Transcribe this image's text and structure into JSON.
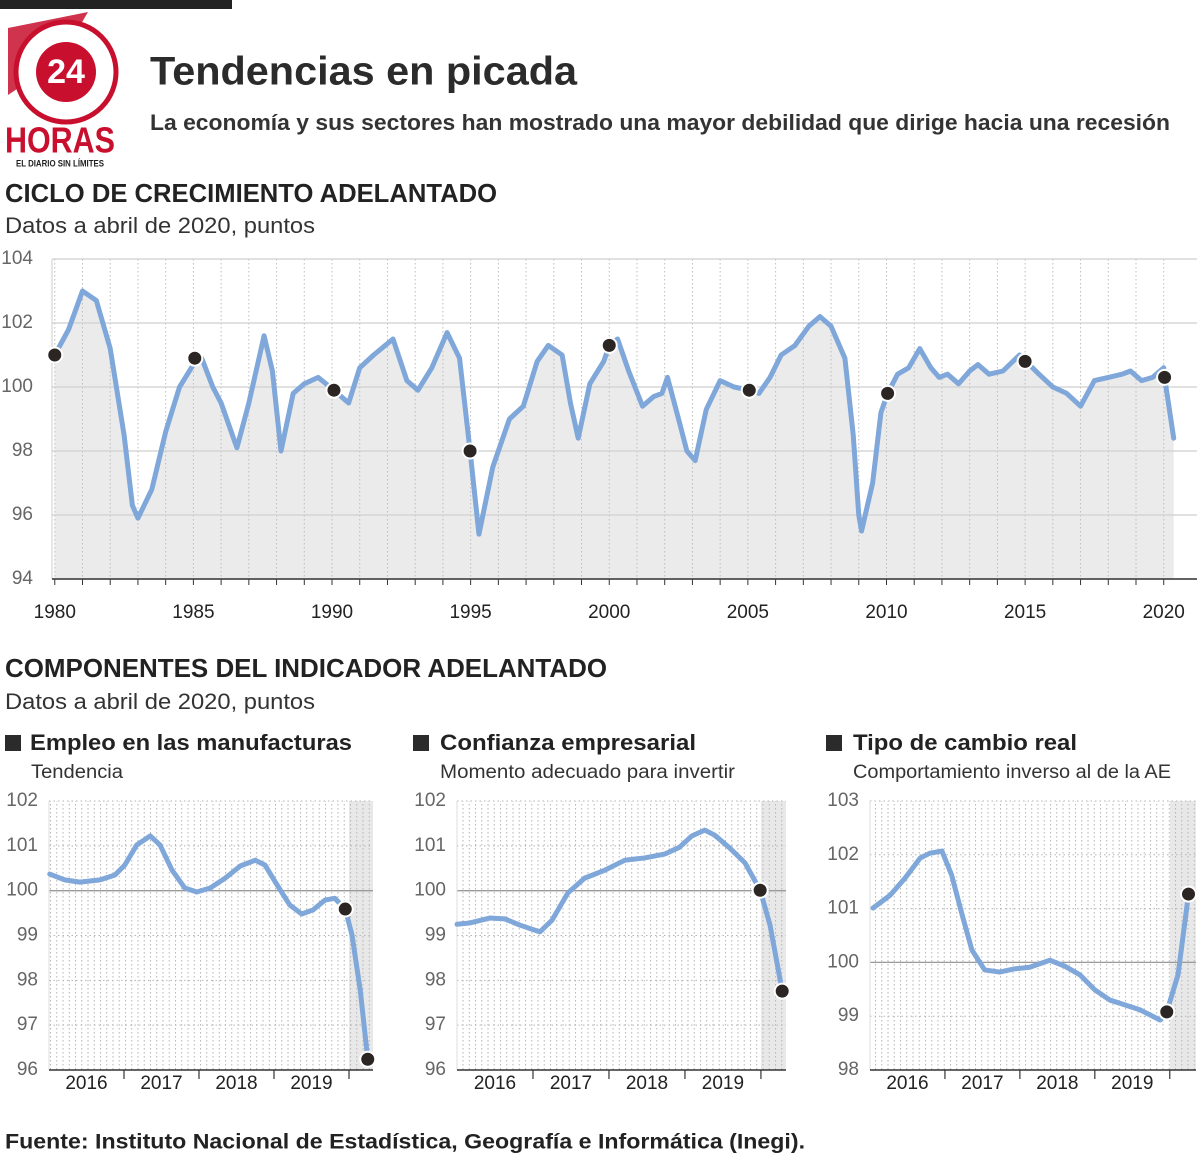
{
  "header": {
    "title": "Tendencias en picada",
    "subtitle": "La economía y sus sectores han mostrado una mayor debilidad que dirige hacia una recesión"
  },
  "logo": {
    "number": "24",
    "name": "HORAS",
    "tagline": "EL DIARIO SIN LÍMITES"
  },
  "section": {
    "title": "COMPONENTES DEL INDICADOR ADELANTADO",
    "subtitle": "Datos a abril de 2020, puntos"
  },
  "source": "Fuente: Instituto Nacional de Estadística, Geografía e Informática (Inegi).",
  "chart_data": [
    {
      "type": "line",
      "title": "CICLO DE CRECIMIENTO ADELANTADO",
      "subtitle": "Datos a abril de 2020, puntos",
      "color": "#7fa7d9",
      "area": true,
      "area_color": "#ebebeb",
      "grid": true,
      "xlim": [
        1979.9,
        2021.2
      ],
      "ylim": [
        94,
        104
      ],
      "xticks": [
        1980,
        1985,
        1990,
        1995,
        2000,
        2005,
        2010,
        2015,
        2020
      ],
      "xminor": [
        1980,
        1981,
        1982,
        1983,
        1984,
        1985,
        1986,
        1987,
        1988,
        1989,
        1990,
        1991,
        1992,
        1993,
        1994,
        1995,
        1996,
        1997,
        1998,
        1999,
        2000,
        2001,
        2002,
        2003,
        2004,
        2005,
        2006,
        2007,
        2008,
        2009,
        2010,
        2011,
        2012,
        2013,
        2014,
        2015,
        2016,
        2017,
        2018,
        2019,
        2020
      ],
      "yticks": [
        94,
        96,
        98,
        100,
        102,
        104
      ],
      "x": [
        1980.0,
        1980.5,
        1981.0,
        1981.5,
        1982.0,
        1982.5,
        1982.8,
        1983.0,
        1983.5,
        1984.0,
        1984.5,
        1985.0,
        1985.3,
        1985.7,
        1986.0,
        1986.57,
        1987.0,
        1987.55,
        1987.85,
        1988.16,
        1988.6,
        1989.0,
        1989.5,
        1990.07,
        1990.6,
        1991.0,
        1991.5,
        1992.2,
        1992.7,
        1993.1,
        1993.6,
        1994.15,
        1994.6,
        1994.98,
        1995.3,
        1995.8,
        1996.4,
        1996.9,
        1997.4,
        1997.8,
        1998.3,
        1998.6,
        1998.88,
        1999.3,
        1999.8,
        2000.0,
        2000.3,
        2000.7,
        2001.2,
        2001.6,
        2001.9,
        2002.1,
        2002.5,
        2002.8,
        2003.1,
        2003.5,
        2004.0,
        2004.5,
        2005.05,
        2005.4,
        2005.8,
        2006.2,
        2006.7,
        2007.2,
        2007.6,
        2008.0,
        2008.5,
        2008.8,
        2009.0,
        2009.1,
        2009.5,
        2009.8,
        2010.04,
        2010.4,
        2010.8,
        2011.2,
        2011.6,
        2011.9,
        2012.2,
        2012.6,
        2013.0,
        2013.3,
        2013.7,
        2014.2,
        2014.8,
        2015.5,
        2016.0,
        2016.5,
        2017.0,
        2017.5,
        2018.0,
        2018.5,
        2018.8,
        2019.2,
        2019.6,
        2020.0,
        2020.03,
        2020.36
      ],
      "values": [
        101.0,
        101.8,
        103.0,
        102.7,
        101.2,
        98.5,
        96.3,
        95.9,
        96.8,
        98.6,
        100.0,
        100.7,
        100.9,
        100.0,
        99.5,
        98.1,
        99.5,
        101.6,
        100.5,
        98.0,
        99.8,
        100.1,
        100.3,
        99.9,
        99.5,
        100.6,
        101.0,
        101.5,
        100.2,
        99.9,
        100.6,
        101.7,
        100.9,
        98.0,
        95.4,
        97.5,
        99.0,
        99.4,
        100.8,
        101.3,
        101.0,
        99.5,
        98.4,
        100.1,
        100.8,
        101.3,
        101.5,
        100.5,
        99.4,
        99.7,
        99.8,
        100.3,
        99.0,
        98.0,
        97.7,
        99.3,
        100.2,
        100.0,
        99.9,
        99.8,
        100.3,
        101.0,
        101.3,
        101.9,
        102.2,
        101.9,
        100.9,
        98.5,
        96.0,
        95.5,
        97.0,
        99.2,
        99.8,
        100.4,
        100.6,
        101.2,
        100.6,
        100.3,
        100.4,
        100.1,
        100.5,
        100.7,
        100.4,
        100.5,
        101.0,
        100.4,
        100.0,
        99.8,
        99.4,
        100.2,
        100.3,
        100.4,
        100.5,
        100.2,
        100.3,
        100.6,
        100.3,
        98.4
      ],
      "highlights": {
        "x": [
          1980.0,
          1985.05,
          1990.07,
          1994.98,
          2000.0,
          2005.05,
          2010.04,
          2015.0,
          2020.03
        ],
        "values": [
          101.0,
          100.9,
          99.9,
          98.0,
          101.3,
          99.9,
          99.8,
          100.8,
          100.3
        ]
      }
    },
    {
      "type": "line",
      "title": "Empleo en las manufacturas",
      "subtitle": "Tendencia",
      "color": "#7fa7d9",
      "grid": true,
      "reference": 100,
      "shaded_from": 2020,
      "xlim": [
        2016,
        2020.32
      ],
      "ylim": [
        96,
        102
      ],
      "xticks": [
        {
          "value": 2016.5,
          "label": "2016"
        },
        {
          "value": 2017.5,
          "label": "2017"
        },
        {
          "value": 2018.5,
          "label": "2018"
        },
        {
          "value": 2019.5,
          "label": "2019"
        }
      ],
      "yticks": [
        96,
        97,
        98,
        99,
        100,
        101,
        102
      ],
      "x": [
        2016.01,
        2016.21,
        2016.41,
        2016.68,
        2016.88,
        2017.01,
        2017.17,
        2017.35,
        2017.48,
        2017.64,
        2017.81,
        2017.97,
        2018.15,
        2018.35,
        2018.55,
        2018.75,
        2018.88,
        2019.04,
        2019.21,
        2019.37,
        2019.52,
        2019.68,
        2019.81,
        2019.95,
        2020.04,
        2020.15,
        2020.25
      ],
      "values": [
        100.37,
        100.24,
        100.19,
        100.24,
        100.35,
        100.57,
        101.02,
        101.22,
        101.02,
        100.46,
        100.06,
        99.97,
        100.06,
        100.28,
        100.55,
        100.68,
        100.57,
        100.13,
        99.68,
        99.48,
        99.57,
        99.79,
        99.83,
        99.59,
        99.01,
        97.78,
        96.24
      ],
      "highlights": {
        "x": [
          2019.95,
          2020.25
        ],
        "values": [
          99.59,
          96.24
        ]
      }
    },
    {
      "type": "line",
      "title": "Confianza empresarial",
      "subtitle": "Momento adecuado para invertir",
      "color": "#7fa7d9",
      "grid": true,
      "reference": 100,
      "shaded_from": 2020,
      "xlim": [
        2016,
        2020.33
      ],
      "ylim": [
        96,
        102
      ],
      "xticks": [
        {
          "value": 2016.5,
          "label": "2016"
        },
        {
          "value": 2017.5,
          "label": "2017"
        },
        {
          "value": 2018.5,
          "label": "2018"
        },
        {
          "value": 2019.5,
          "label": "2019"
        }
      ],
      "yticks": [
        96,
        97,
        98,
        99,
        100,
        101,
        102
      ],
      "x": [
        2016.0,
        2016.17,
        2016.43,
        2016.63,
        2016.83,
        2017.09,
        2017.25,
        2017.46,
        2017.68,
        2017.95,
        2018.21,
        2018.47,
        2018.74,
        2018.93,
        2019.09,
        2019.26,
        2019.39,
        2019.59,
        2019.79,
        2019.99,
        2020.12,
        2020.28
      ],
      "values": [
        99.25,
        99.28,
        99.39,
        99.37,
        99.23,
        99.08,
        99.34,
        99.95,
        100.28,
        100.46,
        100.68,
        100.73,
        100.82,
        100.97,
        101.22,
        101.35,
        101.24,
        100.95,
        100.62,
        100.01,
        99.23,
        97.76
      ],
      "highlights": {
        "x": [
          2019.99,
          2020.28
        ],
        "values": [
          100.01,
          97.76
        ]
      }
    },
    {
      "type": "line",
      "title": "Tipo de cambio real",
      "subtitle": "Comportamiento inverso al de la AE",
      "color": "#7fa7d9",
      "grid": true,
      "reference": 100,
      "shaded_from": 2020,
      "xlim": [
        2016,
        2020.35
      ],
      "ylim": [
        98,
        103
      ],
      "xticks": [
        {
          "value": 2016.5,
          "label": "2016"
        },
        {
          "value": 2017.5,
          "label": "2017"
        },
        {
          "value": 2018.5,
          "label": "2018"
        },
        {
          "value": 2019.5,
          "label": "2019"
        }
      ],
      "yticks": [
        98,
        99,
        100,
        101,
        102,
        103
      ],
      "x": [
        2016.04,
        2016.27,
        2016.47,
        2016.67,
        2016.8,
        2016.96,
        2017.09,
        2017.23,
        2017.36,
        2017.53,
        2017.73,
        2017.93,
        2018.13,
        2018.4,
        2018.6,
        2018.8,
        2019.0,
        2019.2,
        2019.4,
        2019.6,
        2019.87,
        2019.96,
        2020.11,
        2020.25
      ],
      "values": [
        101.01,
        101.25,
        101.57,
        101.94,
        102.03,
        102.07,
        101.62,
        100.88,
        100.23,
        99.86,
        99.82,
        99.88,
        99.91,
        100.04,
        99.93,
        99.77,
        99.49,
        99.3,
        99.21,
        99.12,
        98.93,
        99.08,
        99.77,
        101.27
      ],
      "highlights": {
        "x": [
          2019.96,
          2020.25
        ],
        "values": [
          99.08,
          101.27
        ]
      }
    }
  ]
}
